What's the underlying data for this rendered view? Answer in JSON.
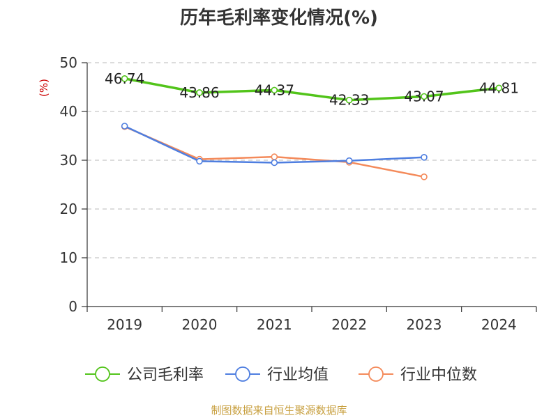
{
  "chart_data": {
    "type": "line",
    "title": "历年毛利率变化情况(%)",
    "ylabel": "(%)",
    "xlabel": "",
    "categories": [
      "2019",
      "2020",
      "2021",
      "2022",
      "2023",
      "2024"
    ],
    "ylim": [
      0,
      50
    ],
    "yticks": [
      0,
      10,
      20,
      30,
      40,
      50
    ],
    "grid": true,
    "legend_position": "bottom",
    "series": [
      {
        "name": "公司毛利率",
        "color": "#52c41a",
        "values": [
          46.74,
          43.86,
          44.37,
          42.33,
          43.07,
          44.81
        ],
        "labels": [
          "46.74",
          "43.86",
          "44.37",
          "42.33",
          "43.07",
          "44.81"
        ]
      },
      {
        "name": "行业均值",
        "color": "#4e7ee0",
        "values": [
          37.0,
          29.8,
          29.5,
          29.9,
          30.6,
          null
        ]
      },
      {
        "name": "行业中位数",
        "color": "#f48a5a",
        "values": [
          36.9,
          30.2,
          30.7,
          29.6,
          26.6,
          null
        ]
      }
    ]
  },
  "footer": {
    "source": "制图数据来自恒生聚源数据库"
  }
}
